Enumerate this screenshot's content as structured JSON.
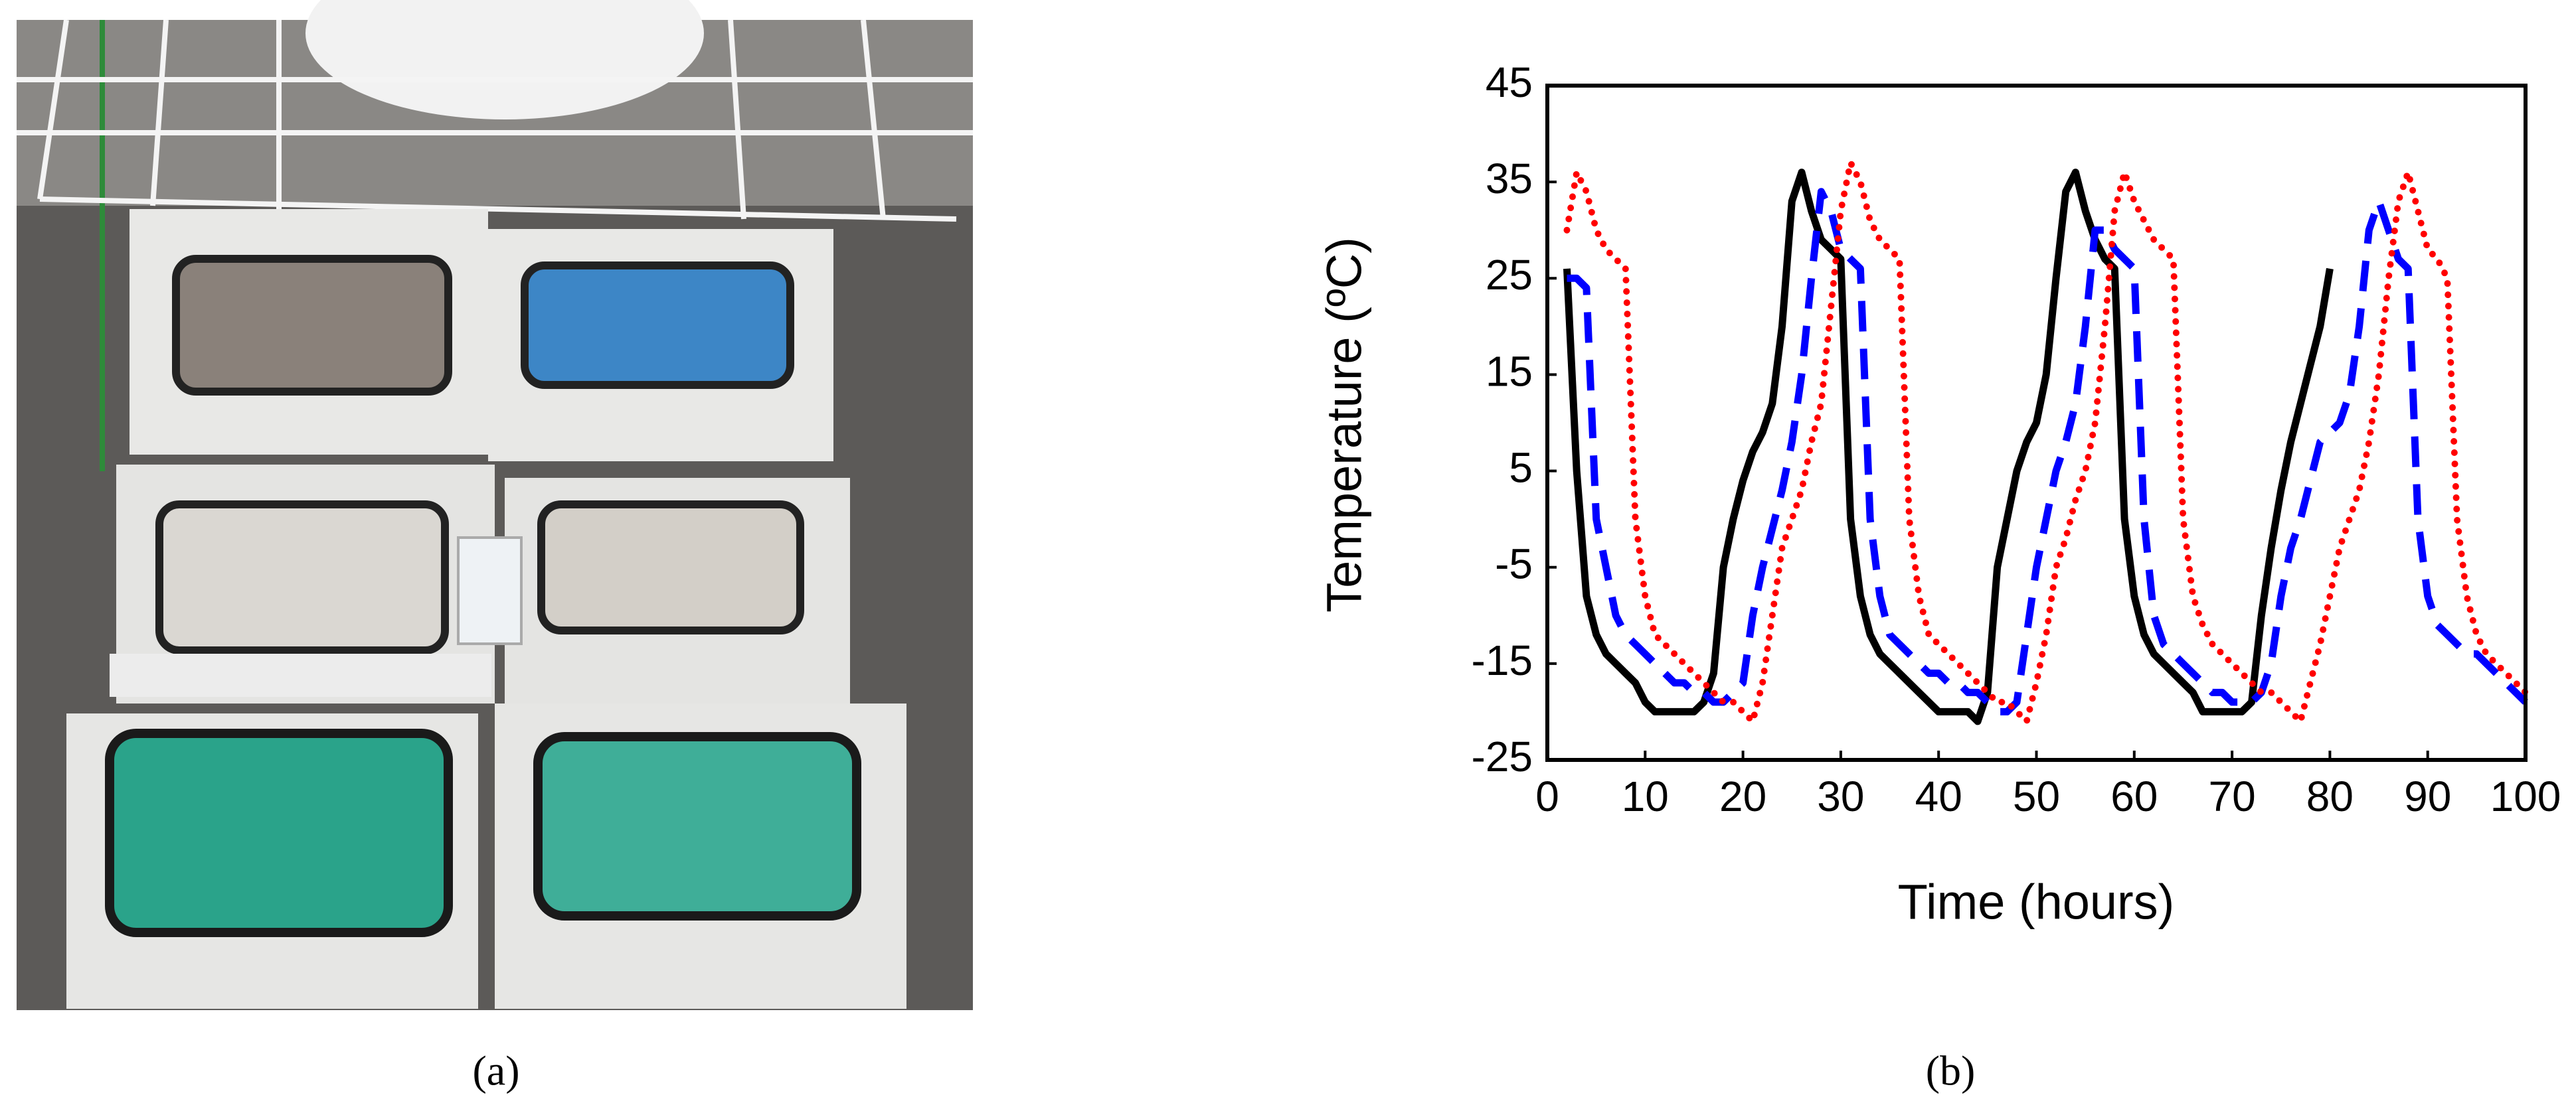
{
  "chart_data": {
    "type": "line",
    "y_label": "Temperature (ºC)",
    "x_label": "Time (hours)",
    "panel_a_label": "(a)",
    "panel_b_label": "(b)",
    "xlim": [
      0,
      100
    ],
    "xticks": [
      0,
      10,
      20,
      30,
      40,
      50,
      60,
      70,
      80,
      90,
      100
    ],
    "ylim": [
      -25,
      45
    ],
    "yticks": [
      -25,
      -15,
      -5,
      5,
      15,
      25,
      35,
      45
    ],
    "x": [
      0,
      1,
      2,
      3,
      4,
      5,
      6,
      7,
      8,
      9,
      10,
      11,
      12,
      13,
      14,
      15,
      16,
      17,
      18,
      19,
      20,
      21,
      22,
      23,
      24,
      25,
      26,
      27,
      28,
      29,
      30,
      31,
      32,
      33,
      34,
      35,
      36,
      37,
      38,
      39,
      40,
      41,
      42,
      43,
      44,
      45,
      46,
      47,
      48,
      49,
      50,
      51,
      52,
      53,
      54,
      55,
      56,
      57,
      58,
      59,
      60,
      61,
      62,
      63,
      64,
      65,
      66,
      67,
      68,
      69,
      70,
      71,
      72,
      73,
      74,
      75,
      76,
      77,
      78,
      79,
      80,
      81,
      82,
      83,
      84,
      85,
      86,
      87,
      88,
      89,
      90,
      91,
      92,
      93,
      94,
      95,
      96,
      97,
      98,
      99,
      100
    ],
    "series": [
      {
        "color": "#000000",
        "dash": "solid",
        "values": [
          null,
          null,
          26,
          5,
          -8,
          -12,
          -14,
          -15,
          -16,
          -17,
          -19,
          -20,
          -20,
          -20,
          -20,
          -20,
          -19,
          -16,
          -5,
          0,
          4,
          7,
          9,
          12,
          20,
          33,
          36,
          32,
          29,
          28,
          27,
          0,
          -8,
          -12,
          -14,
          -15,
          -16,
          -17,
          -18,
          -19,
          -20,
          -20,
          -20,
          -20,
          -21,
          -18,
          -5,
          0,
          5,
          8,
          10,
          15,
          25,
          34,
          36,
          32,
          29,
          27,
          26,
          0,
          -8,
          -12,
          -14,
          -15,
          -16,
          -17,
          -18,
          -20,
          -20,
          -20,
          -20,
          -20,
          -19,
          -10,
          -3,
          3,
          8,
          12,
          16,
          20,
          26,
          null,
          null,
          null,
          null,
          null,
          null,
          null,
          null,
          null,
          null,
          null,
          null,
          null,
          null,
          null,
          null,
          null,
          null,
          null,
          null
        ]
      },
      {
        "color": "#0000ff",
        "dash": "dashed",
        "values": [
          null,
          null,
          25,
          25,
          24,
          0,
          -5,
          -10,
          -12,
          -13,
          -14,
          -15,
          -16,
          -17,
          -17,
          -18,
          -18,
          -19,
          -19,
          -18,
          -17,
          -10,
          -5,
          -1,
          3,
          8,
          15,
          25,
          34,
          32,
          28,
          27,
          26,
          0,
          -8,
          -12,
          -13,
          -14,
          -15,
          -16,
          -16,
          -17,
          -17,
          -18,
          -18,
          -19,
          -20,
          -20,
          -19,
          -12,
          -5,
          0,
          5,
          8,
          12,
          20,
          30,
          30,
          28,
          27,
          26,
          0,
          -10,
          -13,
          -14,
          -15,
          -16,
          -17,
          -18,
          -18,
          -19,
          -19,
          -19,
          -18,
          -15,
          -8,
          -3,
          0,
          4,
          8,
          9,
          10,
          13,
          20,
          30,
          33,
          30,
          27,
          26,
          0,
          -8,
          -11,
          -12,
          -13,
          -14,
          -14,
          -15,
          -16,
          -17,
          -18,
          -19
        ]
      },
      {
        "color": "#ff0000",
        "dash": "dotted",
        "values": [
          null,
          null,
          30,
          36,
          34,
          30,
          28,
          27,
          26,
          0,
          -8,
          -12,
          -13,
          -14,
          -15,
          -16,
          -17,
          -18,
          -19,
          -19,
          -20,
          -21,
          -17,
          -10,
          -3,
          0,
          3,
          8,
          12,
          22,
          32,
          37,
          35,
          31,
          29,
          28,
          27,
          0,
          -8,
          -12,
          -13,
          -14,
          -15,
          -16,
          -17,
          -18,
          -19,
          -19,
          -20,
          -21,
          -17,
          -12,
          -5,
          -2,
          2,
          5,
          10,
          20,
          32,
          36,
          33,
          31,
          29,
          28,
          27,
          0,
          -8,
          -11,
          -13,
          -14,
          -15,
          -16,
          -17,
          -18,
          -18,
          -19,
          -20,
          -21,
          -17,
          -13,
          -8,
          -3,
          0,
          3,
          8,
          15,
          25,
          33,
          36,
          32,
          28,
          27,
          25,
          0,
          -8,
          -12,
          -14,
          -15,
          -16,
          -17,
          -18
        ]
      }
    ]
  }
}
